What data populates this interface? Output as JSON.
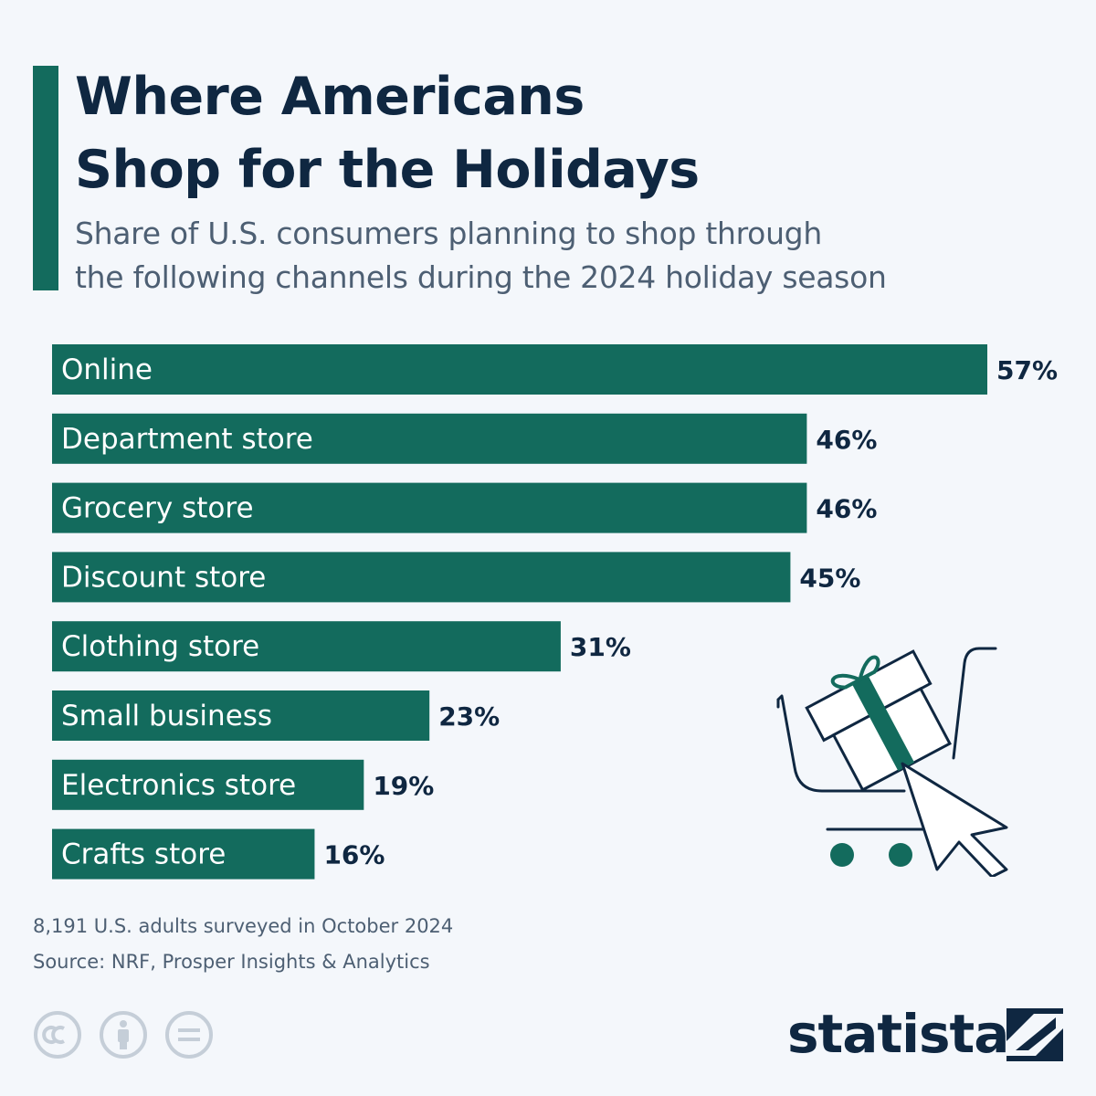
{
  "header": {
    "title_line1": "Where Americans",
    "title_line2": "Shop for the Holidays",
    "subtitle_line1": "Share of U.S. consumers planning to shop through",
    "subtitle_line2": "the following channels during the 2024 holiday season"
  },
  "chart_data": {
    "type": "bar",
    "orientation": "horizontal",
    "categories": [
      "Online",
      "Department store",
      "Grocery store",
      "Discount store",
      "Clothing store",
      "Small business",
      "Electronics store",
      "Crafts store"
    ],
    "values": [
      57,
      46,
      46,
      45,
      31,
      23,
      19,
      16
    ],
    "value_labels": [
      "57%",
      "46%",
      "46%",
      "45%",
      "31%",
      "23%",
      "19%",
      "16%"
    ],
    "unit": "%",
    "xlim": [
      0,
      57
    ],
    "grid": false,
    "bar_color": "#136b5d"
  },
  "footer": {
    "note": "8,191 U.S. adults surveyed in October 2024",
    "source": "Source: NRF, Prosper Insights & Analytics",
    "brand": "statista",
    "license_icons": [
      "cc-icon",
      "attribution-icon",
      "no-derivatives-icon"
    ]
  },
  "colors": {
    "accent": "#136b5d",
    "title": "#0f2741",
    "text_muted": "#4d5f73",
    "background": "#f4f7fb"
  },
  "icons": {
    "illustration": "shopping-cart-gift-cursor-icon"
  }
}
